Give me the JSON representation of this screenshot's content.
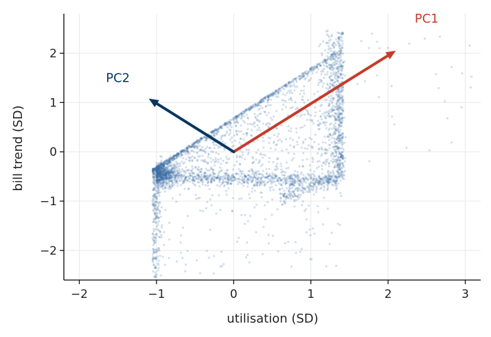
{
  "chart_data": {
    "type": "scatter",
    "title": "",
    "xlabel": "utilisation (SD)",
    "ylabel": "bill trend (SD)",
    "xlim": [
      -2.2,
      3.2
    ],
    "ylim": [
      -2.6,
      2.8
    ],
    "x_ticks": [
      -2,
      -1,
      0,
      1,
      2,
      3
    ],
    "y_ticks": [
      -2,
      -1,
      0,
      1,
      2
    ],
    "x_tick_labels": [
      "−2",
      "−1",
      "0",
      "1",
      "2",
      "3"
    ],
    "y_tick_labels": [
      "−2",
      "−1",
      "0",
      "1",
      "2"
    ],
    "grid": true,
    "point_color": "#3a6ea5",
    "scatter_description": "about 3000 semi-transparent points, approximated by the structures below",
    "scatter_structure": {
      "diagonal_edge": {
        "x": [
          -1.05,
          1.3
        ],
        "y": [
          -0.35,
          2.8
        ]
      },
      "left_wall": {
        "x": -1.05,
        "y": [
          -2.5,
          -0.3
        ]
      },
      "horizontal_band": {
        "x": [
          -1.05,
          1.4
        ],
        "y": [
          -0.55,
          -0.6
        ]
      },
      "right_column": {
        "x": [
          1.1,
          1.45
        ],
        "y": [
          -0.5,
          2.4
        ]
      },
      "dense_cluster": {
        "x": -1.0,
        "y": -0.5
      }
    },
    "vectors": [
      {
        "name": "PC1",
        "x0": 0,
        "y0": 0,
        "x1": 2.1,
        "y1": 2.05,
        "color": "#c53b2a",
        "label_x": 2.5,
        "label_y": 2.7
      },
      {
        "name": "PC2",
        "x0": 0,
        "y0": 0,
        "x1": -1.1,
        "y1": 1.08,
        "color": "#08365f",
        "label_x": -1.5,
        "label_y": 1.5
      }
    ]
  }
}
